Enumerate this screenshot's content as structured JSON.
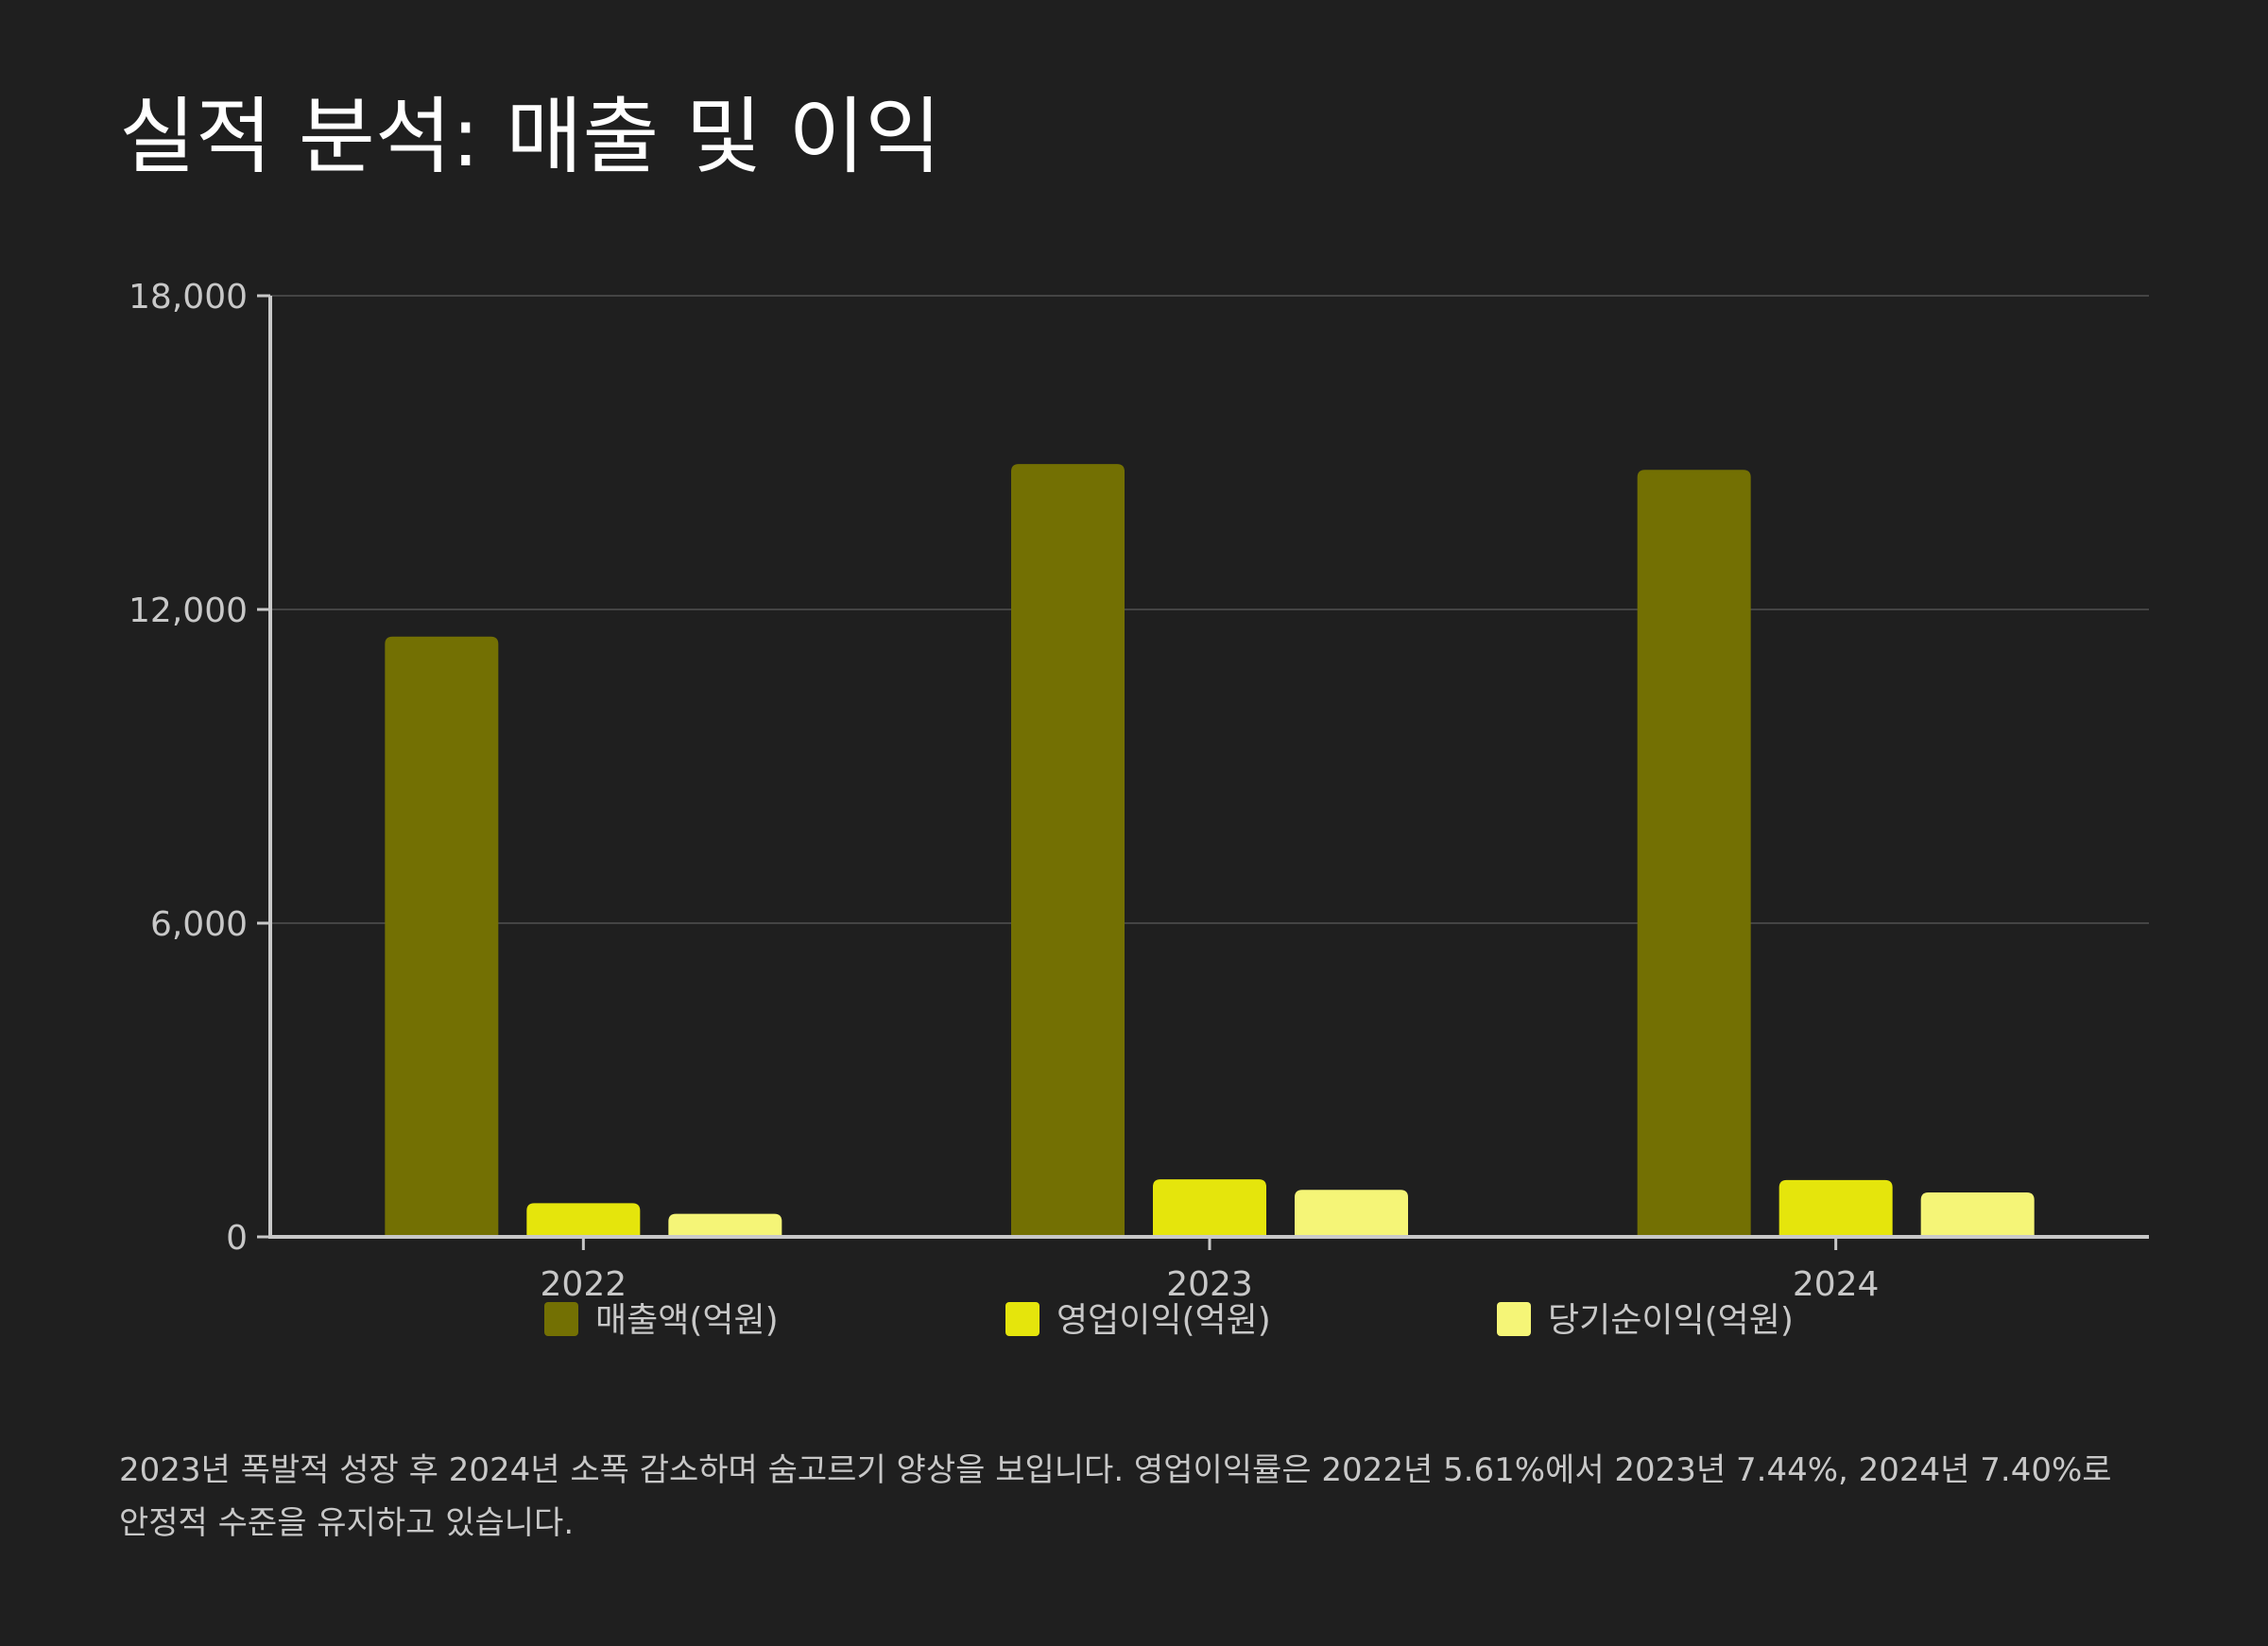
{
  "page": {
    "title": "실적 분석: 매출 및 이익",
    "caption": "2023년 폭발적 성장 후 2024년 소폭 감소하며 숨고르기 양상을 보입니다. 영업이익률은 2022년 5.61%에서 2023년 7.44%, 2024년 7.40%로 안정적 수준을 유지하고 있습니다."
  },
  "chart_data": {
    "type": "bar",
    "categories": [
      "2022",
      "2023",
      "2024"
    ],
    "series": [
      {
        "name": "매출액(억원)",
        "values": [
          11480,
          14780,
          14670
        ],
        "color": "#737003"
      },
      {
        "name": "영업이익(억원)",
        "values": [
          644,
          1100,
          1086
        ],
        "color": "#e5e50c"
      },
      {
        "name": "당기순이익(억원)",
        "values": [
          440,
          900,
          850
        ],
        "color": "#f5f577"
      }
    ],
    "ylim": [
      0,
      18000
    ],
    "yticks": [
      0,
      6000,
      12000,
      18000
    ],
    "ytick_labels": [
      "0",
      "6,000",
      "12,000",
      "18,000"
    ],
    "grid": true,
    "legend": "bottom",
    "axis_color": "#c8c8c8",
    "grid_color": "#444444",
    "background": "#1f1f1f"
  }
}
